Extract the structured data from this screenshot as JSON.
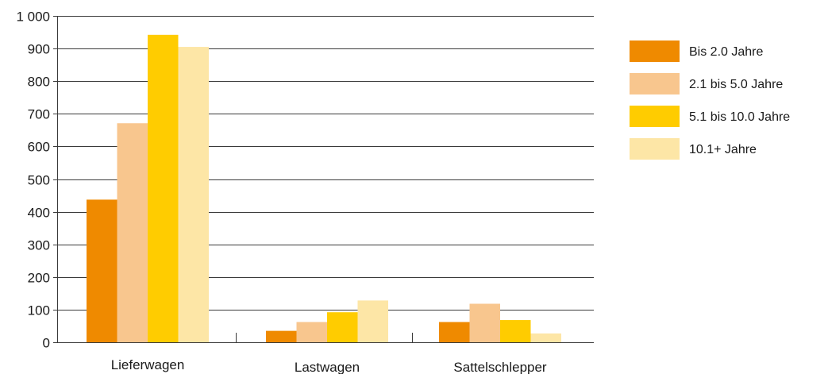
{
  "chart_data": {
    "type": "bar",
    "title": "",
    "xlabel": "",
    "ylabel": "",
    "categories": [
      "Lieferwagen",
      "Lastwagen",
      "Sattelschlepper"
    ],
    "series": [
      {
        "name": "Bis 2.0 Jahre",
        "color": "#ef8a00",
        "values": [
          437,
          35,
          62
        ]
      },
      {
        "name": "2.1 bis 5.0 Jahre",
        "color": "#f8c68e",
        "values": [
          671,
          62,
          118
        ]
      },
      {
        "name": "5.1 bis 10.0 Jahre",
        "color": "#ffcc00",
        "values": [
          942,
          92,
          68
        ]
      },
      {
        "name": "10.1+ Jahre",
        "color": "#fde6a6",
        "values": [
          905,
          128,
          27
        ]
      }
    ],
    "ylim": [
      0,
      1000
    ],
    "yticks": [
      0,
      100,
      200,
      300,
      400,
      500,
      600,
      700,
      800,
      900,
      1000
    ],
    "ytick_labels": [
      "0",
      "100",
      "200",
      "300",
      "400",
      "500",
      "600",
      "700",
      "800",
      "900",
      "1 000"
    ],
    "grid": true,
    "legend_position": "right"
  }
}
